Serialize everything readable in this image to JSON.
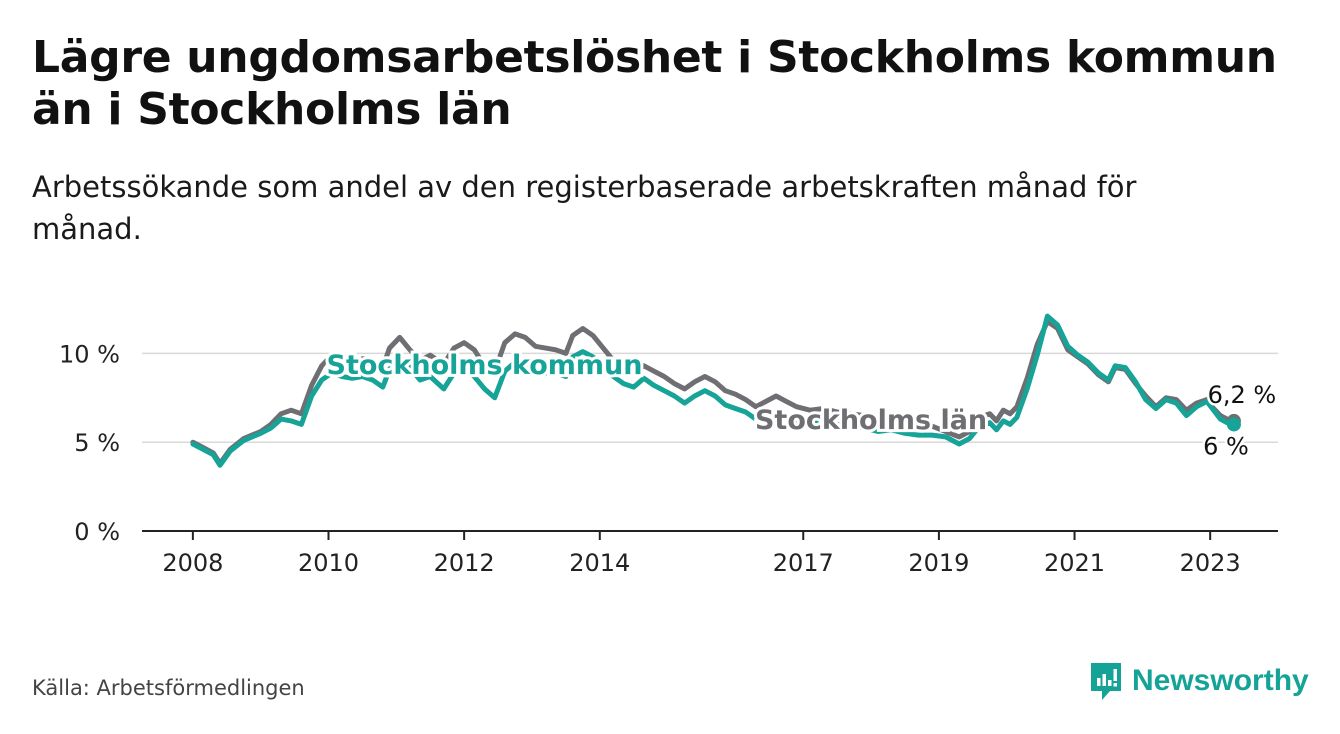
{
  "title": "Lägre ungdomsarbetslöshet i Stockholms kommun än i Stockholms län",
  "subtitle": "Arbetssökande som andel av den registerbaserade arbetskraften månad för månad.",
  "source": "Källa: Arbetsförmedlingen",
  "brand": "Newsworthy",
  "colors": {
    "kommun": "#16a398",
    "lan": "#6e6e73",
    "grid": "#d9d9d9",
    "axis": "#222222"
  },
  "chart_data": {
    "type": "line",
    "title": "Lägre ungdomsarbetslöshet i Stockholms kommun än i Stockholms län",
    "xlabel": "",
    "ylabel": "",
    "ylim": [
      0,
      12.5
    ],
    "xlim": [
      2007.25,
      2024.0
    ],
    "y_ticks": [
      {
        "value": 0,
        "label": "0 %"
      },
      {
        "value": 5,
        "label": "5 %"
      },
      {
        "value": 10,
        "label": "10 %"
      }
    ],
    "x_ticks": [
      {
        "value": 2008,
        "label": "2008"
      },
      {
        "value": 2010,
        "label": "2010"
      },
      {
        "value": 2012,
        "label": "2012"
      },
      {
        "value": 2014,
        "label": "2014"
      },
      {
        "value": 2017,
        "label": "2017"
      },
      {
        "value": 2019,
        "label": "2019"
      },
      {
        "value": 2021,
        "label": "2021"
      },
      {
        "value": 2023,
        "label": "2023"
      }
    ],
    "series": [
      {
        "name": "Stockholms län",
        "color": "#6e6e73",
        "end_label": "6,2 %",
        "points": [
          [
            2008.0,
            5.0
          ],
          [
            2008.15,
            4.7
          ],
          [
            2008.3,
            4.4
          ],
          [
            2008.4,
            3.8
          ],
          [
            2008.55,
            4.6
          ],
          [
            2008.75,
            5.2
          ],
          [
            2009.0,
            5.6
          ],
          [
            2009.15,
            6.0
          ],
          [
            2009.3,
            6.6
          ],
          [
            2009.45,
            6.8
          ],
          [
            2009.6,
            6.6
          ],
          [
            2009.75,
            8.2
          ],
          [
            2009.9,
            9.3
          ],
          [
            2010.05,
            9.9
          ],
          [
            2010.2,
            9.8
          ],
          [
            2010.35,
            9.6
          ],
          [
            2010.5,
            9.7
          ],
          [
            2010.65,
            9.6
          ],
          [
            2010.8,
            9.2
          ],
          [
            2010.9,
            10.3
          ],
          [
            2011.05,
            10.9
          ],
          [
            2011.2,
            10.2
          ],
          [
            2011.35,
            9.6
          ],
          [
            2011.5,
            9.9
          ],
          [
            2011.7,
            9.4
          ],
          [
            2011.85,
            10.3
          ],
          [
            2012.0,
            10.6
          ],
          [
            2012.15,
            10.2
          ],
          [
            2012.3,
            9.3
          ],
          [
            2012.45,
            9.0
          ],
          [
            2012.6,
            10.6
          ],
          [
            2012.75,
            11.1
          ],
          [
            2012.9,
            10.9
          ],
          [
            2013.05,
            10.4
          ],
          [
            2013.2,
            10.3
          ],
          [
            2013.35,
            10.2
          ],
          [
            2013.5,
            10.0
          ],
          [
            2013.6,
            11.0
          ],
          [
            2013.75,
            11.4
          ],
          [
            2013.9,
            11.0
          ],
          [
            2014.05,
            10.3
          ],
          [
            2014.2,
            9.6
          ],
          [
            2014.35,
            9.2
          ],
          [
            2014.5,
            9.0
          ],
          [
            2014.65,
            9.3
          ],
          [
            2014.8,
            9.0
          ],
          [
            2014.95,
            8.7
          ],
          [
            2015.1,
            8.3
          ],
          [
            2015.25,
            8.0
          ],
          [
            2015.4,
            8.4
          ],
          [
            2015.55,
            8.7
          ],
          [
            2015.7,
            8.4
          ],
          [
            2015.85,
            7.9
          ],
          [
            2016.0,
            7.7
          ],
          [
            2016.15,
            7.4
          ],
          [
            2016.3,
            7.0
          ],
          [
            2016.45,
            7.3
          ],
          [
            2016.6,
            7.6
          ],
          [
            2016.75,
            7.3
          ],
          [
            2016.9,
            7.0
          ],
          [
            2017.1,
            6.8
          ],
          [
            2017.3,
            6.9
          ],
          [
            2017.5,
            6.7
          ],
          [
            2017.7,
            6.6
          ],
          [
            2017.9,
            6.5
          ],
          [
            2018.1,
            6.2
          ],
          [
            2018.3,
            6.4
          ],
          [
            2018.5,
            6.2
          ],
          [
            2018.7,
            6.0
          ],
          [
            2018.9,
            5.9
          ],
          [
            2019.1,
            5.6
          ],
          [
            2019.3,
            5.3
          ],
          [
            2019.45,
            5.6
          ],
          [
            2019.6,
            6.4
          ],
          [
            2019.75,
            6.6
          ],
          [
            2019.85,
            6.2
          ],
          [
            2019.95,
            6.8
          ],
          [
            2020.05,
            6.6
          ],
          [
            2020.15,
            7.0
          ],
          [
            2020.3,
            8.6
          ],
          [
            2020.45,
            10.5
          ],
          [
            2020.6,
            11.8
          ],
          [
            2020.75,
            11.4
          ],
          [
            2020.9,
            10.2
          ],
          [
            2021.05,
            9.8
          ],
          [
            2021.2,
            9.4
          ],
          [
            2021.35,
            8.8
          ],
          [
            2021.5,
            8.4
          ],
          [
            2021.6,
            9.2
          ],
          [
            2021.75,
            9.1
          ],
          [
            2021.9,
            8.3
          ],
          [
            2022.05,
            7.6
          ],
          [
            2022.2,
            7.0
          ],
          [
            2022.35,
            7.5
          ],
          [
            2022.5,
            7.4
          ],
          [
            2022.65,
            6.8
          ],
          [
            2022.8,
            7.2
          ],
          [
            2022.95,
            7.4
          ],
          [
            2023.05,
            6.9
          ],
          [
            2023.15,
            6.5
          ],
          [
            2023.25,
            6.3
          ],
          [
            2023.35,
            6.2
          ]
        ]
      },
      {
        "name": "Stockholms kommun",
        "color": "#16a398",
        "end_label": "6 %",
        "points": [
          [
            2008.0,
            4.9
          ],
          [
            2008.15,
            4.6
          ],
          [
            2008.3,
            4.3
          ],
          [
            2008.4,
            3.7
          ],
          [
            2008.55,
            4.5
          ],
          [
            2008.75,
            5.1
          ],
          [
            2009.0,
            5.5
          ],
          [
            2009.15,
            5.8
          ],
          [
            2009.3,
            6.3
          ],
          [
            2009.45,
            6.2
          ],
          [
            2009.6,
            6.0
          ],
          [
            2009.75,
            7.6
          ],
          [
            2009.9,
            8.5
          ],
          [
            2010.05,
            8.9
          ],
          [
            2010.2,
            8.7
          ],
          [
            2010.35,
            8.6
          ],
          [
            2010.5,
            8.7
          ],
          [
            2010.65,
            8.5
          ],
          [
            2010.8,
            8.1
          ],
          [
            2010.9,
            9.1
          ],
          [
            2011.05,
            9.8
          ],
          [
            2011.2,
            9.2
          ],
          [
            2011.35,
            8.5
          ],
          [
            2011.5,
            8.7
          ],
          [
            2011.7,
            8.0
          ],
          [
            2011.85,
            8.9
          ],
          [
            2012.0,
            9.2
          ],
          [
            2012.15,
            8.7
          ],
          [
            2012.3,
            8.0
          ],
          [
            2012.45,
            7.5
          ],
          [
            2012.6,
            9.0
          ],
          [
            2012.75,
            9.5
          ],
          [
            2012.9,
            9.3
          ],
          [
            2013.05,
            9.0
          ],
          [
            2013.2,
            8.9
          ],
          [
            2013.35,
            8.9
          ],
          [
            2013.5,
            8.7
          ],
          [
            2013.6,
            9.8
          ],
          [
            2013.75,
            10.1
          ],
          [
            2013.9,
            9.8
          ],
          [
            2014.05,
            9.2
          ],
          [
            2014.2,
            8.7
          ],
          [
            2014.35,
            8.3
          ],
          [
            2014.5,
            8.1
          ],
          [
            2014.65,
            8.6
          ],
          [
            2014.8,
            8.2
          ],
          [
            2014.95,
            7.9
          ],
          [
            2015.1,
            7.6
          ],
          [
            2015.25,
            7.2
          ],
          [
            2015.4,
            7.6
          ],
          [
            2015.55,
            7.9
          ],
          [
            2015.7,
            7.6
          ],
          [
            2015.85,
            7.1
          ],
          [
            2016.0,
            6.9
          ],
          [
            2016.15,
            6.7
          ],
          [
            2016.3,
            6.3
          ],
          [
            2016.45,
            6.5
          ],
          [
            2016.6,
            6.7
          ],
          [
            2016.75,
            6.4
          ],
          [
            2016.9,
            6.2
          ],
          [
            2017.1,
            6.1
          ],
          [
            2017.3,
            6.2
          ],
          [
            2017.5,
            6.0
          ],
          [
            2017.7,
            5.9
          ],
          [
            2017.9,
            5.8
          ],
          [
            2018.1,
            5.6
          ],
          [
            2018.3,
            5.7
          ],
          [
            2018.5,
            5.5
          ],
          [
            2018.7,
            5.4
          ],
          [
            2018.9,
            5.4
          ],
          [
            2019.1,
            5.3
          ],
          [
            2019.3,
            4.9
          ],
          [
            2019.45,
            5.2
          ],
          [
            2019.6,
            5.9
          ],
          [
            2019.75,
            6.1
          ],
          [
            2019.85,
            5.7
          ],
          [
            2019.95,
            6.2
          ],
          [
            2020.05,
            6.0
          ],
          [
            2020.15,
            6.4
          ],
          [
            2020.3,
            8.0
          ],
          [
            2020.45,
            9.9
          ],
          [
            2020.6,
            12.1
          ],
          [
            2020.75,
            11.6
          ],
          [
            2020.9,
            10.4
          ],
          [
            2021.05,
            9.9
          ],
          [
            2021.2,
            9.5
          ],
          [
            2021.35,
            8.9
          ],
          [
            2021.5,
            8.5
          ],
          [
            2021.6,
            9.3
          ],
          [
            2021.75,
            9.2
          ],
          [
            2021.9,
            8.4
          ],
          [
            2022.05,
            7.4
          ],
          [
            2022.2,
            6.9
          ],
          [
            2022.35,
            7.4
          ],
          [
            2022.5,
            7.2
          ],
          [
            2022.65,
            6.5
          ],
          [
            2022.8,
            7.0
          ],
          [
            2022.95,
            7.3
          ],
          [
            2023.05,
            6.8
          ],
          [
            2023.15,
            6.3
          ],
          [
            2023.25,
            6.1
          ],
          [
            2023.35,
            6.0
          ]
        ]
      }
    ],
    "annotations": [
      {
        "series": "Stockholms kommun",
        "text": "Stockholms kommun",
        "x": 2012.3,
        "y": 9.4
      },
      {
        "series": "Stockholms län",
        "text": "Stockholms län",
        "x": 2018.0,
        "y": 6.3
      }
    ]
  }
}
